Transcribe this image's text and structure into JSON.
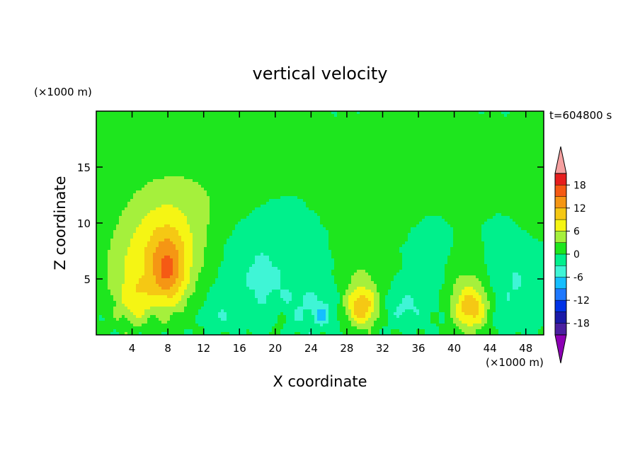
{
  "chart_data": {
    "type": "heatmap",
    "title": "vertical velocity",
    "xlabel": "X coordinate",
    "ylabel": "Z coordinate",
    "x_unit": "(×1000 m)",
    "y_unit": "(×1000 m)",
    "time_label": "t=604800 s",
    "xlim": [
      0,
      50
    ],
    "ylim": [
      0,
      20
    ],
    "x_ticks": [
      4,
      8,
      12,
      16,
      20,
      24,
      28,
      32,
      36,
      40,
      44,
      48
    ],
    "y_ticks": [
      5,
      10,
      15
    ],
    "colorbar": {
      "levels": [
        -21,
        -18,
        -15,
        -12,
        -9,
        -6,
        -3,
        0,
        3,
        6,
        9,
        12,
        15,
        18,
        21
      ],
      "tick_labels": [
        "18",
        "12",
        "6",
        "0",
        "-6",
        "-12",
        "-18"
      ],
      "tick_values": [
        18,
        12,
        6,
        0,
        -6,
        -12,
        -18
      ],
      "colors_low_to_high": [
        "#8c00b4",
        "#4a1fa0",
        "#1a1aa8",
        "#0032e6",
        "#1e78ff",
        "#14beff",
        "#3ff5d6",
        "#00f08c",
        "#1ee61e",
        "#a5f03c",
        "#f5f514",
        "#f5c814",
        "#f59614",
        "#f55a14",
        "#e61e1e",
        "#f5a0a0"
      ]
    },
    "features": [
      {
        "kind": "updraft",
        "x": 8,
        "z": 6.5,
        "w": 18
      },
      {
        "kind": "updraft",
        "x": 4.5,
        "z": 3,
        "w": 9
      },
      {
        "kind": "updraft",
        "x": 29.5,
        "z": 2.5,
        "w": 12
      },
      {
        "kind": "updraft",
        "x": 42,
        "z": 2.5,
        "w": 12
      },
      {
        "kind": "weak_updraft",
        "x": 10,
        "z": 12,
        "w": 3
      },
      {
        "kind": "weak_updraft",
        "x": 36,
        "z": 12.5,
        "w": 3
      },
      {
        "kind": "downdraft",
        "x": 24,
        "z": 2,
        "w": -6
      },
      {
        "kind": "downdraft",
        "x": 19,
        "z": 6,
        "w": -3
      },
      {
        "kind": "downdraft",
        "x": 46,
        "z": 5,
        "w": -3
      }
    ]
  }
}
